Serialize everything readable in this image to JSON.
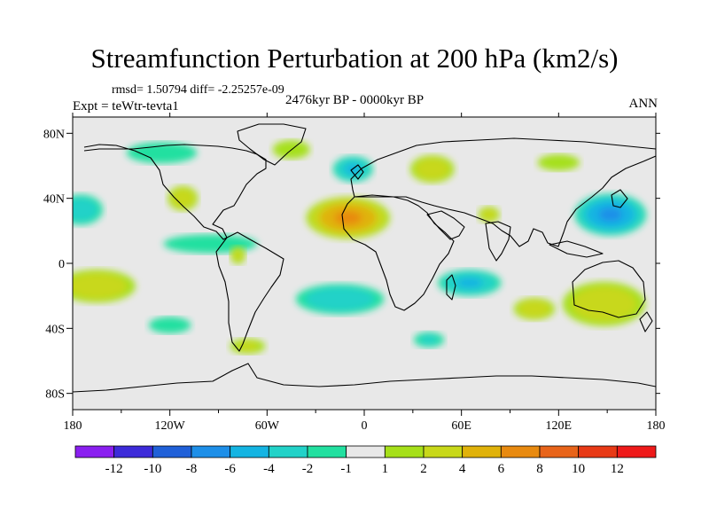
{
  "header": {
    "title": "Streamfunction Perturbation at 200 hPa (km2/s)",
    "stats": "rmsd= 1.50794 diff= -2.25257e-09",
    "experiment": "Expt = teWtr-tevta1",
    "period": "2476kyr BP - 0000kyr BP",
    "season": "ANN"
  },
  "chart_data": {
    "type": "heatmap",
    "title": "Streamfunction Perturbation at 200 hPa (km2/s)",
    "units": "km2/s",
    "xlabel": "",
    "ylabel": "",
    "xlim": [
      -180,
      180
    ],
    "ylim": [
      -90,
      90
    ],
    "x_ticks": [
      {
        "value": -180,
        "label": "180"
      },
      {
        "value": -120,
        "label": "120W"
      },
      {
        "value": -60,
        "label": "60W"
      },
      {
        "value": 0,
        "label": "0"
      },
      {
        "value": 60,
        "label": "60E"
      },
      {
        "value": 120,
        "label": "120E"
      },
      {
        "value": 180,
        "label": "180"
      }
    ],
    "y_ticks": [
      {
        "value": 80,
        "label": "80N"
      },
      {
        "value": 40,
        "label": "40N"
      },
      {
        "value": 0,
        "label": "0"
      },
      {
        "value": -40,
        "label": "40S"
      },
      {
        "value": -80,
        "label": "80S"
      }
    ],
    "colorbar": {
      "levels": [
        -12,
        -10,
        -8,
        -6,
        -4,
        -2,
        -1,
        1,
        2,
        4,
        6,
        8,
        10,
        12
      ],
      "colors": [
        "#8a1ff0",
        "#3d2bd9",
        "#2060d8",
        "#1e8fe8",
        "#14b4e2",
        "#22d2c8",
        "#22e0a0",
        "#e8e8e8",
        "#a6e01a",
        "#c8d81a",
        "#e0b20a",
        "#e88a10",
        "#e8641a",
        "#e83a16",
        "#ee1a1a"
      ]
    },
    "anomalies": [
      {
        "name": "north-africa-max",
        "lon": -10,
        "lat": 28,
        "rlon": 28,
        "rlat": 14,
        "value": 6
      },
      {
        "name": "nw-pacific-min",
        "lon": 152,
        "lat": 30,
        "rlon": 24,
        "rlat": 14,
        "value": -6
      },
      {
        "name": "e-europe-max",
        "lon": 42,
        "lat": 58,
        "rlon": 16,
        "rlat": 10,
        "value": 3
      },
      {
        "name": "n-atlantic-min",
        "lon": -7,
        "lat": 58,
        "rlon": 14,
        "rlat": 9,
        "value": -4
      },
      {
        "name": "siberia-max",
        "lon": 120,
        "lat": 62,
        "rlon": 18,
        "rlat": 7,
        "value": 1.5
      },
      {
        "name": "canada-min",
        "lon": -125,
        "lat": 68,
        "rlon": 30,
        "rlat": 9,
        "value": -1.5
      },
      {
        "name": "greenland-max",
        "lon": -45,
        "lat": 70,
        "rlon": 16,
        "rlat": 8,
        "value": 1.5
      },
      {
        "name": "ne-pacific-min",
        "lon": -175,
        "lat": 33,
        "rlon": 16,
        "rlat": 11,
        "value": -3
      },
      {
        "name": "w-usa-max",
        "lon": -112,
        "lat": 40,
        "rlon": 11,
        "rlat": 9,
        "value": 3
      },
      {
        "name": "arabia-max",
        "lon": 77,
        "lat": 30,
        "rlon": 8,
        "rlat": 6,
        "value": 2.5
      },
      {
        "name": "caribbean-min",
        "lon": -95,
        "lat": 12,
        "rlon": 40,
        "rlat": 8,
        "value": -1.5
      },
      {
        "name": "amazon-max",
        "lon": -78,
        "lat": 5,
        "rlon": 6,
        "rlat": 7,
        "value": 2
      },
      {
        "name": "s-pacific-max",
        "lon": -165,
        "lat": -14,
        "rlon": 28,
        "rlat": 12,
        "value": 3
      },
      {
        "name": "s-atlantic-min",
        "lon": -15,
        "lat": -22,
        "rlon": 32,
        "rlat": 11,
        "value": -3
      },
      {
        "name": "indian-ocean-min",
        "lon": 65,
        "lat": -12,
        "rlon": 22,
        "rlat": 9,
        "value": -4
      },
      {
        "name": "australia-max",
        "lon": 148,
        "lat": -25,
        "rlon": 30,
        "rlat": 16,
        "value": 3
      },
      {
        "name": "s-indian-max",
        "lon": 105,
        "lat": -28,
        "rlon": 15,
        "rlat": 8,
        "value": 3
      },
      {
        "name": "se-pacific-min",
        "lon": -120,
        "lat": -38,
        "rlon": 18,
        "rlat": 7,
        "value": -1.5
      },
      {
        "name": "s-america-south-max",
        "lon": -72,
        "lat": -51,
        "rlon": 14,
        "rlat": 6,
        "value": 2
      },
      {
        "name": "s-africa-south-min",
        "lon": 40,
        "lat": -47,
        "rlon": 12,
        "rlat": 6,
        "value": -2
      }
    ]
  }
}
